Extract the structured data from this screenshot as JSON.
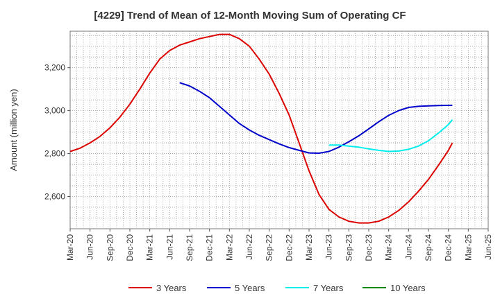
{
  "chart_data": {
    "type": "line",
    "title": "[4229]  Trend of Mean of 12-Month Moving Sum of Operating CF",
    "xlabel": "",
    "ylabel": "Amount (million yen)",
    "ylim": [
      2450,
      3370
    ],
    "yticks": [
      2600,
      2800,
      3000,
      3200
    ],
    "ytick_labels": [
      "2,600",
      "2,800",
      "3,000",
      "3,200"
    ],
    "x_tick_labels": [
      "Mar-20",
      "Jun-20",
      "Sep-20",
      "Dec-20",
      "Mar-21",
      "Jun-21",
      "Sep-21",
      "Dec-21",
      "Mar-22",
      "Jun-22",
      "Sep-22",
      "Dec-22",
      "Mar-23",
      "Jun-23",
      "Sep-23",
      "Dec-23",
      "Mar-24",
      "Jun-24",
      "Sep-24",
      "Dec-24",
      "Mar-25",
      "Jun-25"
    ],
    "grid": true,
    "legend_position": "bottom",
    "series": [
      {
        "name": "3 Years",
        "color": "#dd0000",
        "points": [
          [
            0,
            2810
          ],
          [
            0.5,
            2825
          ],
          [
            1,
            2850
          ],
          [
            1.5,
            2880
          ],
          [
            2,
            2920
          ],
          [
            2.5,
            2970
          ],
          [
            3,
            3030
          ],
          [
            3.5,
            3100
          ],
          [
            4,
            3175
          ],
          [
            4.5,
            3240
          ],
          [
            5,
            3280
          ],
          [
            5.5,
            3305
          ],
          [
            6,
            3320
          ],
          [
            6.5,
            3335
          ],
          [
            7,
            3345
          ],
          [
            7.5,
            3355
          ],
          [
            8,
            3355
          ],
          [
            8.5,
            3335
          ],
          [
            9,
            3300
          ],
          [
            9.5,
            3240
          ],
          [
            10,
            3170
          ],
          [
            10.5,
            3080
          ],
          [
            11,
            2980
          ],
          [
            11.5,
            2850
          ],
          [
            12,
            2720
          ],
          [
            12.5,
            2610
          ],
          [
            13,
            2540
          ],
          [
            13.5,
            2505
          ],
          [
            14,
            2485
          ],
          [
            14.5,
            2477
          ],
          [
            15,
            2477
          ],
          [
            15.5,
            2485
          ],
          [
            16,
            2505
          ],
          [
            16.5,
            2535
          ],
          [
            17,
            2575
          ],
          [
            17.5,
            2625
          ],
          [
            18,
            2680
          ],
          [
            18.5,
            2745
          ],
          [
            19,
            2815
          ],
          [
            19.2,
            2850
          ]
        ]
      },
      {
        "name": "5 Years",
        "color": "#0000cc",
        "points": [
          [
            5.5,
            3130
          ],
          [
            6,
            3115
          ],
          [
            6.5,
            3090
          ],
          [
            7,
            3060
          ],
          [
            7.5,
            3020
          ],
          [
            8,
            2980
          ],
          [
            8.5,
            2940
          ],
          [
            9,
            2910
          ],
          [
            9.5,
            2885
          ],
          [
            10,
            2865
          ],
          [
            10.5,
            2845
          ],
          [
            11,
            2828
          ],
          [
            11.5,
            2815
          ],
          [
            12,
            2803
          ],
          [
            12.5,
            2802
          ],
          [
            13,
            2810
          ],
          [
            13.5,
            2830
          ],
          [
            14,
            2855
          ],
          [
            14.5,
            2883
          ],
          [
            15,
            2915
          ],
          [
            15.5,
            2948
          ],
          [
            16,
            2978
          ],
          [
            16.5,
            3000
          ],
          [
            17,
            3015
          ],
          [
            17.5,
            3020
          ],
          [
            18,
            3022
          ],
          [
            18.5,
            3024
          ],
          [
            19.2,
            3025
          ]
        ]
      },
      {
        "name": "7 Years",
        "color": "#00eeee",
        "points": [
          [
            13,
            2840
          ],
          [
            13.5,
            2840
          ],
          [
            14,
            2835
          ],
          [
            14.5,
            2830
          ],
          [
            15,
            2822
          ],
          [
            15.5,
            2815
          ],
          [
            16,
            2810
          ],
          [
            16.5,
            2812
          ],
          [
            17,
            2820
          ],
          [
            17.5,
            2835
          ],
          [
            18,
            2860
          ],
          [
            18.5,
            2895
          ],
          [
            19,
            2935
          ],
          [
            19.2,
            2958
          ]
        ]
      },
      {
        "name": "10 Years",
        "color": "#008800",
        "points": []
      }
    ]
  }
}
